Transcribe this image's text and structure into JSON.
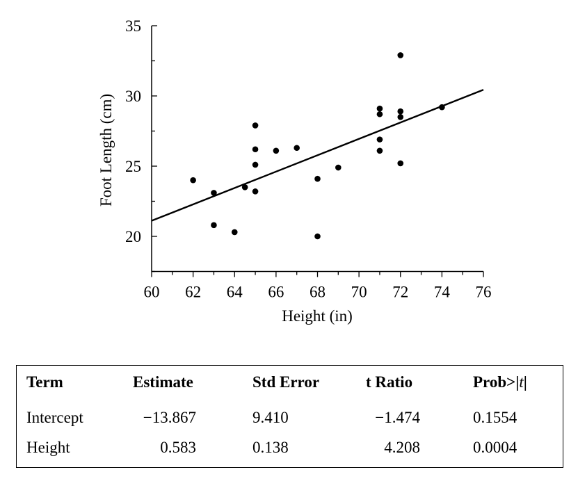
{
  "chart_data": {
    "type": "scatter",
    "xlabel": "Height (in)",
    "ylabel": "Foot Length (cm)",
    "xlim": [
      60,
      76
    ],
    "ylim": [
      17.5,
      35
    ],
    "x_ticks": [
      60,
      62,
      64,
      66,
      68,
      70,
      72,
      74,
      76
    ],
    "y_ticks": [
      20,
      25,
      30,
      35
    ],
    "x_tick_labels": [
      "60",
      "62",
      "64",
      "66",
      "68",
      "70",
      "72",
      "74",
      "76"
    ],
    "y_tick_labels": [
      "20",
      "25",
      "30",
      "35"
    ],
    "x_minor_step": 1,
    "y_minor_step": 2.5,
    "grid": false,
    "points": [
      {
        "x": 62,
        "y": 24.0
      },
      {
        "x": 63,
        "y": 23.1
      },
      {
        "x": 63,
        "y": 20.8
      },
      {
        "x": 64,
        "y": 20.3
      },
      {
        "x": 64.5,
        "y": 23.5
      },
      {
        "x": 65,
        "y": 23.2
      },
      {
        "x": 65,
        "y": 25.1
      },
      {
        "x": 65,
        "y": 26.2
      },
      {
        "x": 65,
        "y": 27.9
      },
      {
        "x": 66,
        "y": 26.1
      },
      {
        "x": 67,
        "y": 26.3
      },
      {
        "x": 68,
        "y": 24.1
      },
      {
        "x": 68,
        "y": 20.0
      },
      {
        "x": 69,
        "y": 24.9
      },
      {
        "x": 71,
        "y": 29.1
      },
      {
        "x": 71,
        "y": 28.7
      },
      {
        "x": 71,
        "y": 26.9
      },
      {
        "x": 71,
        "y": 26.1
      },
      {
        "x": 72,
        "y": 32.9
      },
      {
        "x": 72,
        "y": 28.9
      },
      {
        "x": 72,
        "y": 28.5
      },
      {
        "x": 72,
        "y": 25.2
      },
      {
        "x": 74,
        "y": 29.2
      }
    ],
    "regression_line": {
      "intercept": -13.867,
      "slope": 0.583
    }
  },
  "table": {
    "headers": {
      "term": "Term",
      "estimate": "Estimate",
      "std_error": "Std Error",
      "t_ratio": "t Ratio",
      "prob_prefix": "Prob>|",
      "prob_t": "t",
      "prob_suffix": "|"
    },
    "rows": [
      {
        "term": "Intercept",
        "estimate": "−13.867",
        "std_error": "9.410",
        "t_ratio": "−1.474",
        "prob": "0.1554"
      },
      {
        "term": "Height",
        "estimate": "0.583",
        "std_error": "0.138",
        "t_ratio": "4.208",
        "prob": "0.0004"
      }
    ]
  }
}
